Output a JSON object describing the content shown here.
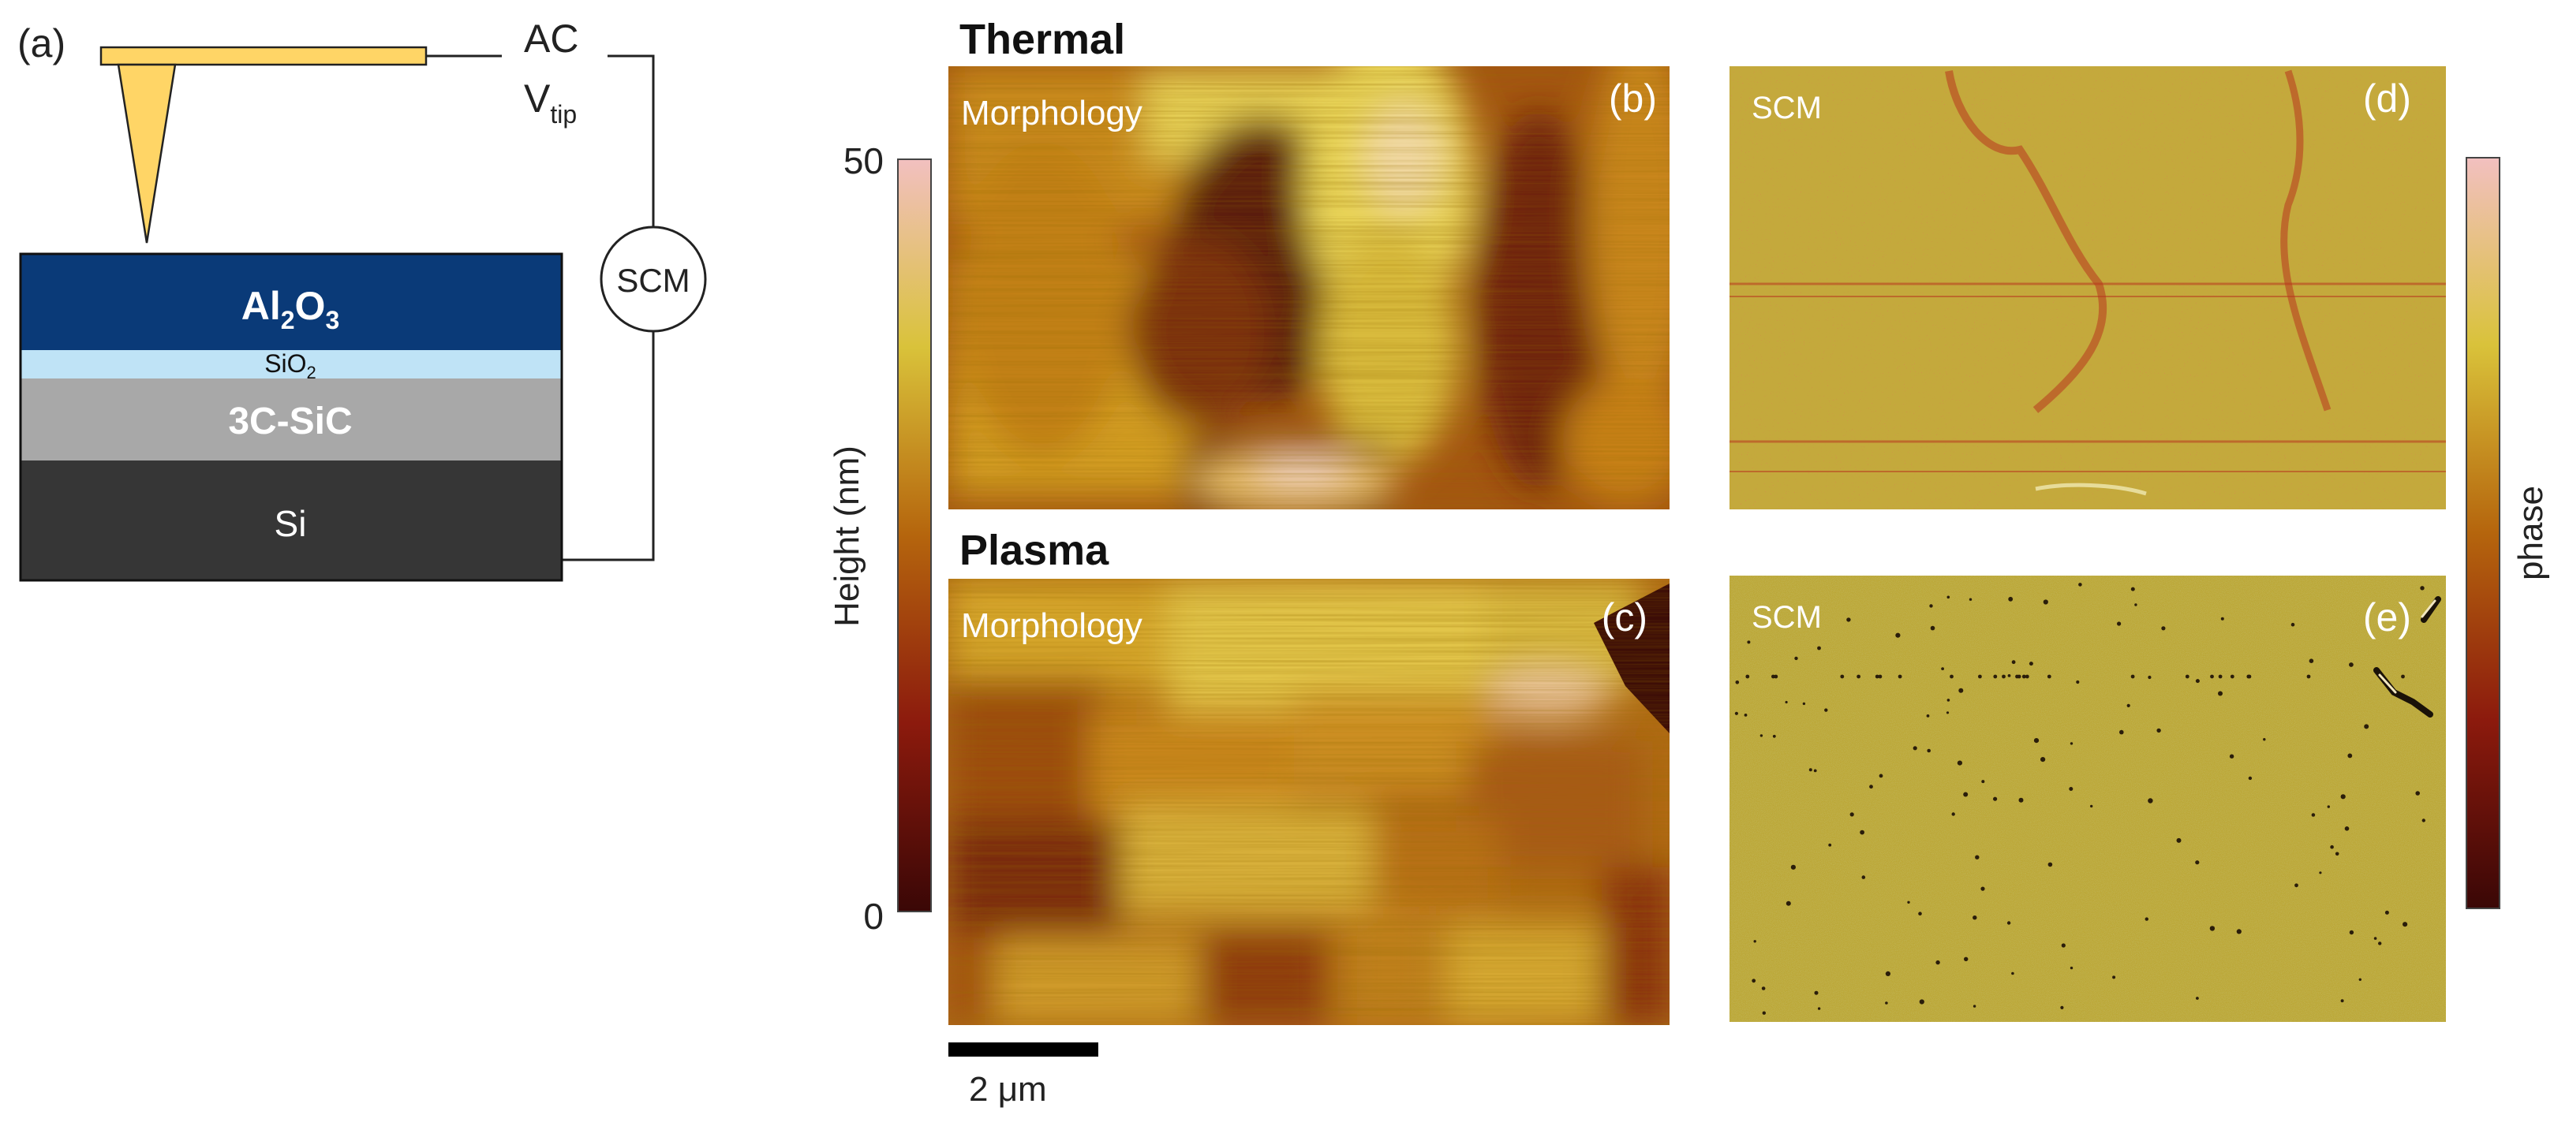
{
  "panel_a": {
    "label": "(a)",
    "ac_label": "AC",
    "vtip_main": "V",
    "vtip_sub": "tip",
    "scm_circle": "SCM",
    "layers": {
      "al2o3": {
        "t1": "Al",
        "s1": "2",
        "t2": "O",
        "s2": "3"
      },
      "sio2": {
        "t1": "SiO",
        "s1": "2"
      },
      "sic": "3C-SiC",
      "si": "Si"
    }
  },
  "rows": {
    "thermal": "Thermal",
    "plasma": "Plasma"
  },
  "panels": {
    "b": {
      "label": "(b)",
      "title": "Morphology"
    },
    "c": {
      "label": "(c)",
      "title": "Morphology"
    },
    "d": {
      "label": "(d)",
      "title": "SCM"
    },
    "e": {
      "label": "(e)",
      "title": "SCM"
    }
  },
  "height_scale": {
    "axis_label": "Height (nm)",
    "max": "50",
    "min": "0"
  },
  "phase_scale": {
    "axis_label": "phase"
  },
  "scale_bar": {
    "label": "2 μm"
  },
  "colors": {
    "al2o3": "#0a3a78",
    "sio2": "#bfe3f6",
    "sic": "#a8a8a8",
    "si": "#363636",
    "tip": "#ffd566",
    "scm_bg": "#c4a93c",
    "scm_dot": "#c0281e"
  }
}
